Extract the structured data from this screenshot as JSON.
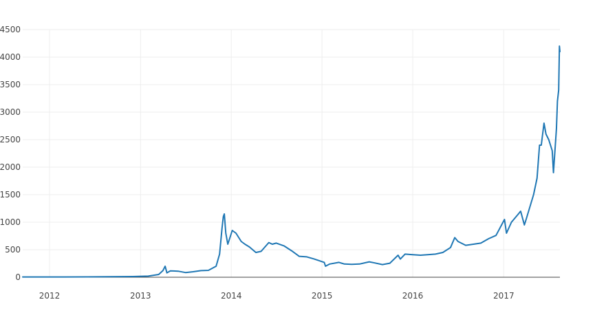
{
  "chart_data": {
    "type": "line",
    "title": "",
    "xlabel": "",
    "ylabel": "",
    "grid": true,
    "legend": "none",
    "x_axis": {
      "type": "date",
      "range": [
        "2011-09-15",
        "2017-08-15"
      ],
      "ticks": [
        {
          "value": "2012-01-01",
          "label": "2012"
        },
        {
          "value": "2013-01-01",
          "label": "2013"
        },
        {
          "value": "2014-01-01",
          "label": "2014"
        },
        {
          "value": "2015-01-01",
          "label": "2015"
        },
        {
          "value": "2016-01-01",
          "label": "2016"
        },
        {
          "value": "2017-01-01",
          "label": "2017"
        }
      ]
    },
    "y_axis": {
      "range": [
        0,
        4500
      ],
      "ticks": [
        0,
        500,
        1000,
        1500,
        2000,
        2500,
        3000,
        3500,
        4000,
        4500
      ]
    },
    "series": [
      {
        "color": "#1f77b4",
        "x": [
          "2011-09-15",
          "2011-12-01",
          "2012-03-01",
          "2012-06-01",
          "2012-09-01",
          "2012-12-01",
          "2013-02-01",
          "2013-03-15",
          "2013-04-01",
          "2013-04-10",
          "2013-04-17",
          "2013-05-01",
          "2013-06-01",
          "2013-07-01",
          "2013-08-01",
          "2013-09-01",
          "2013-10-01",
          "2013-11-01",
          "2013-11-15",
          "2013-11-25",
          "2013-11-30",
          "2013-12-04",
          "2013-12-10",
          "2013-12-18",
          "2014-01-05",
          "2014-01-20",
          "2014-02-10",
          "2014-02-25",
          "2014-03-15",
          "2014-04-10",
          "2014-05-01",
          "2014-06-01",
          "2014-06-15",
          "2014-07-01",
          "2014-08-01",
          "2014-09-01",
          "2014-10-01",
          "2014-11-01",
          "2014-12-01",
          "2015-01-10",
          "2015-01-15",
          "2015-02-01",
          "2015-03-10",
          "2015-04-01",
          "2015-05-01",
          "2015-06-01",
          "2015-07-10",
          "2015-08-01",
          "2015-09-01",
          "2015-10-01",
          "2015-11-03",
          "2015-11-12",
          "2015-12-01",
          "2016-01-01",
          "2016-02-01",
          "2016-03-01",
          "2016-04-01",
          "2016-05-01",
          "2016-06-01",
          "2016-06-18",
          "2016-07-01",
          "2016-08-01",
          "2016-09-01",
          "2016-10-01",
          "2016-11-01",
          "2016-12-01",
          "2017-01-04",
          "2017-01-12",
          "2017-02-01",
          "2017-03-01",
          "2017-03-10",
          "2017-03-25",
          "2017-04-01",
          "2017-05-01",
          "2017-05-15",
          "2017-05-25",
          "2017-06-01",
          "2017-06-12",
          "2017-06-20",
          "2017-07-01",
          "2017-07-15",
          "2017-07-20",
          "2017-08-01",
          "2017-08-05",
          "2017-08-10",
          "2017-08-13",
          "2017-08-15"
        ],
        "y": [
          5,
          4,
          5,
          6,
          10,
          13,
          20,
          50,
          120,
          200,
          80,
          115,
          110,
          85,
          100,
          120,
          125,
          200,
          420,
          900,
          1100,
          1150,
          800,
          600,
          850,
          800,
          650,
          600,
          550,
          450,
          470,
          630,
          600,
          620,
          570,
          480,
          380,
          370,
          330,
          270,
          200,
          240,
          270,
          240,
          235,
          240,
          280,
          260,
          230,
          255,
          400,
          330,
          420,
          410,
          400,
          410,
          420,
          450,
          540,
          720,
          650,
          580,
          600,
          620,
          700,
          760,
          1050,
          800,
          1000,
          1150,
          1200,
          950,
          1050,
          1500,
          1800,
          2400,
          2400,
          2800,
          2600,
          2500,
          2300,
          1900,
          2700,
          3200,
          3400,
          4200,
          4100
        ]
      }
    ]
  }
}
